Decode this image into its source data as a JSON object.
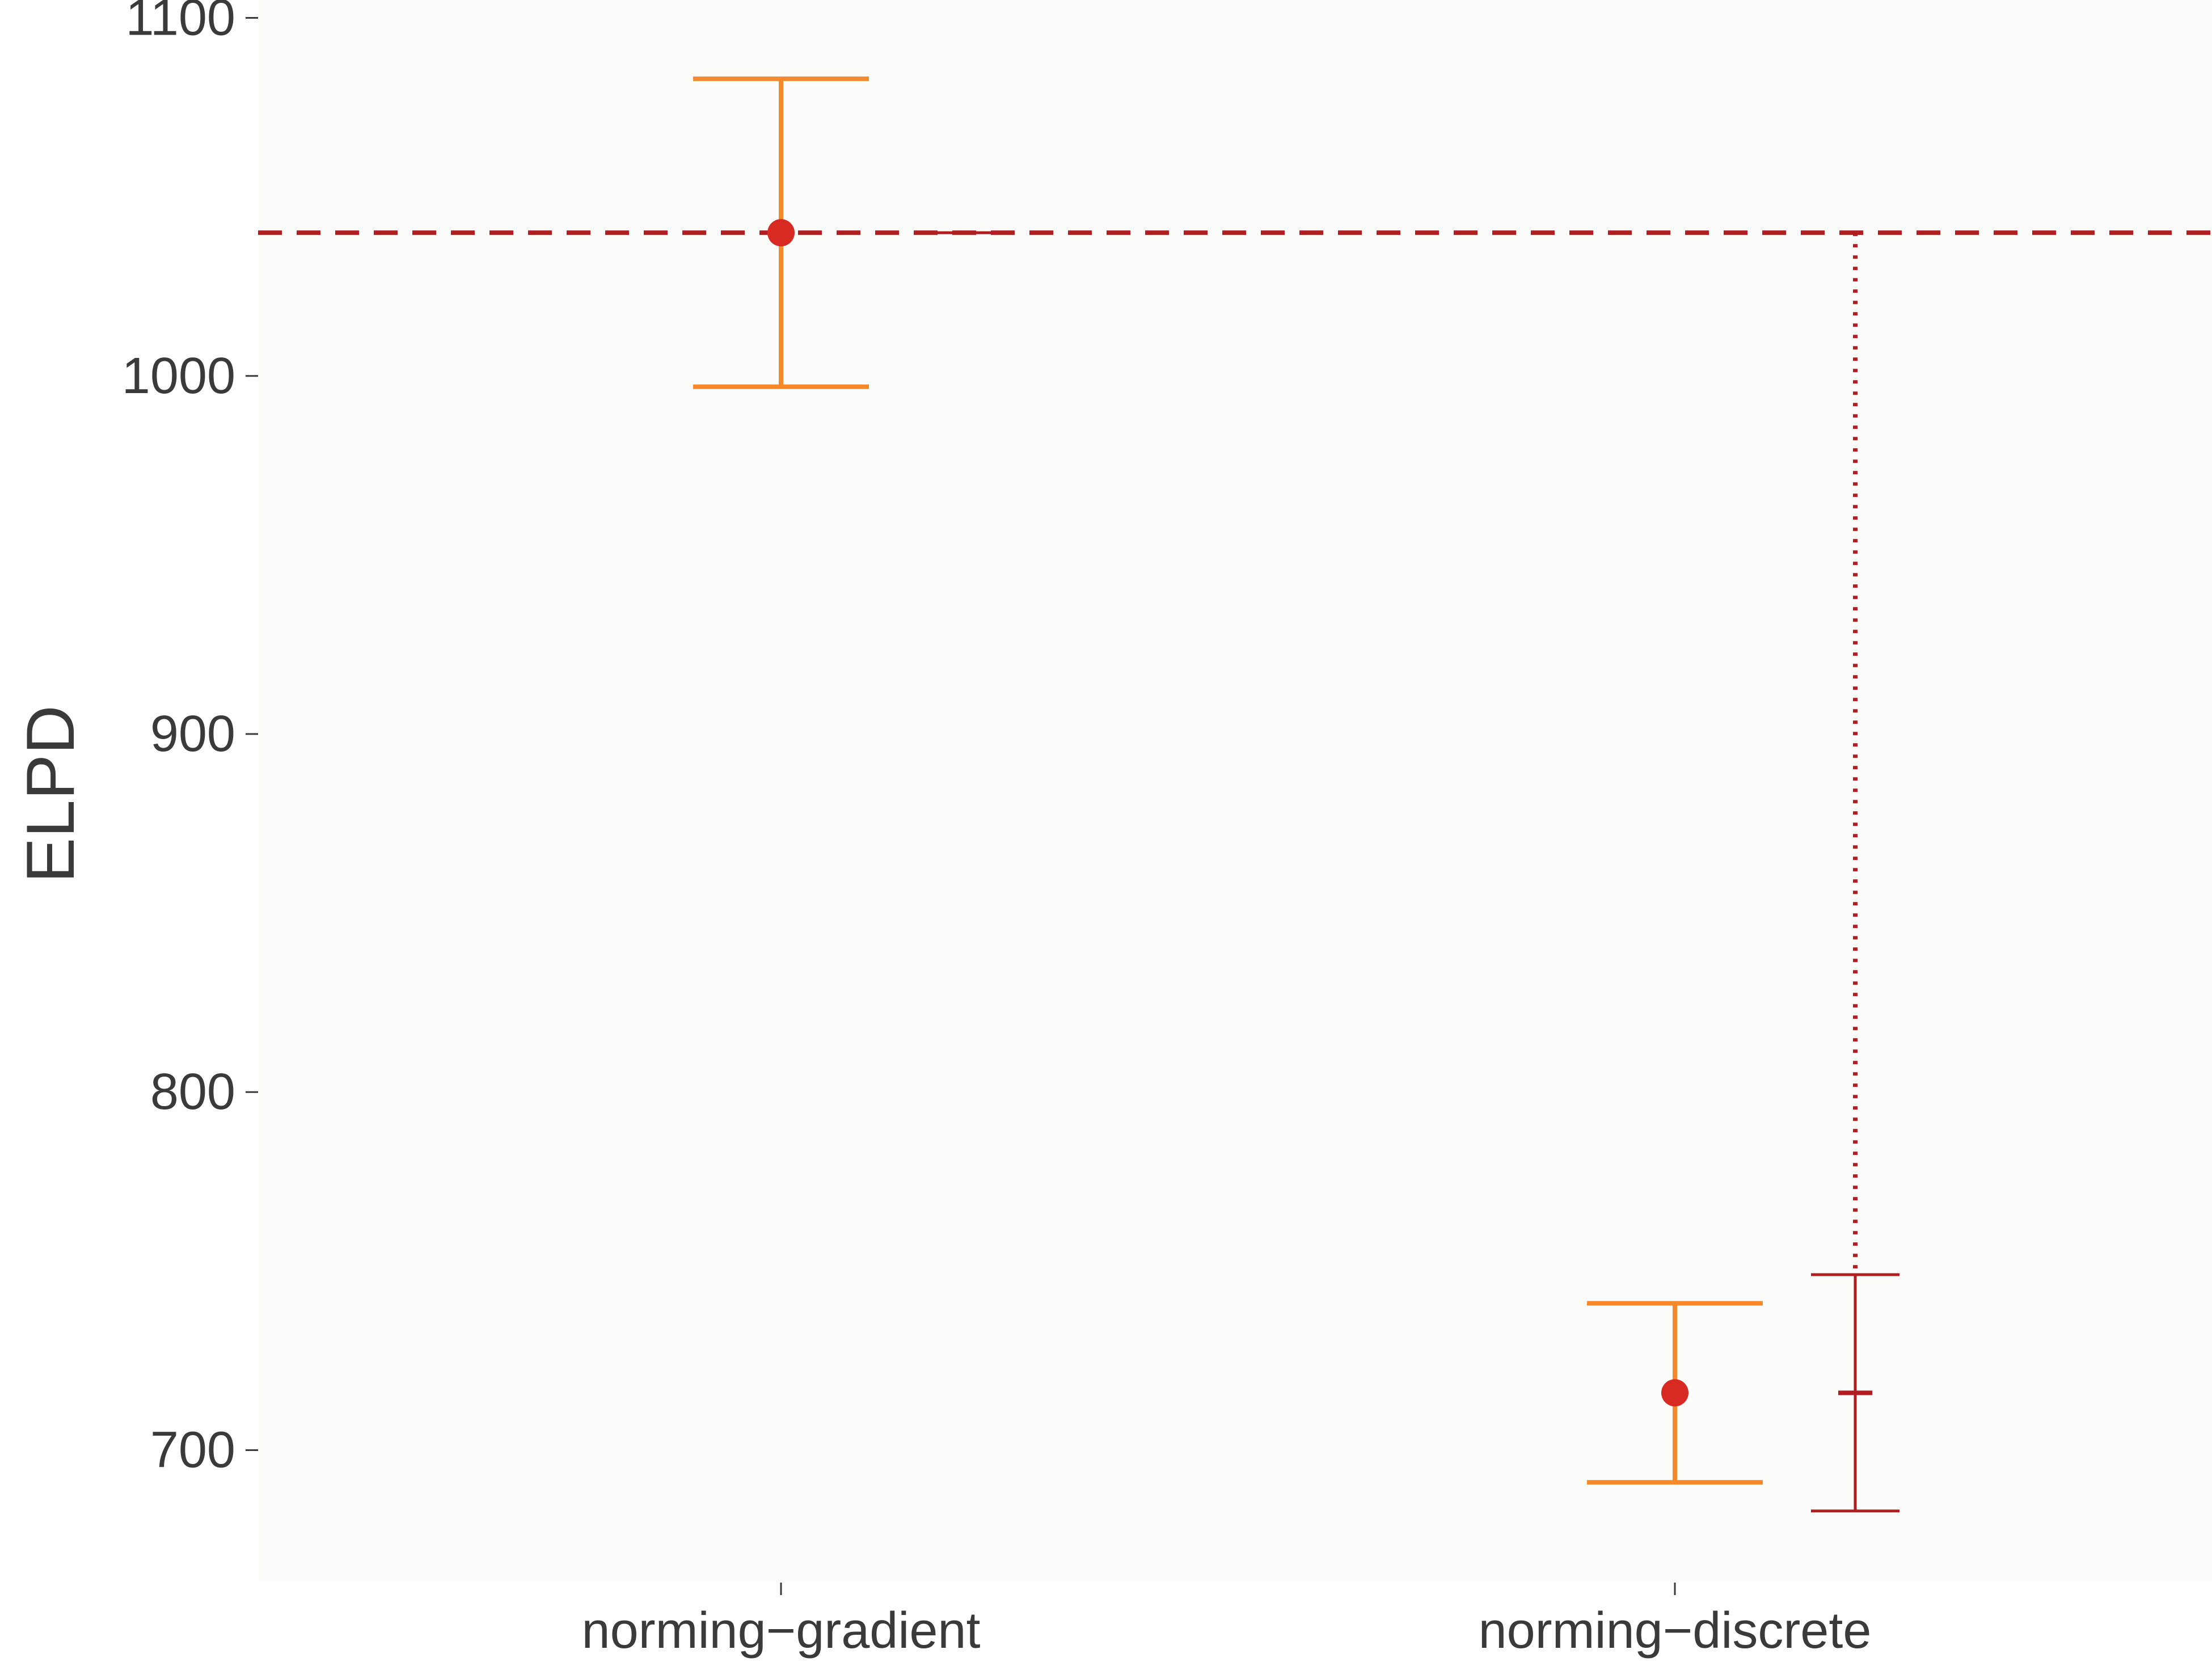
{
  "chart_data": {
    "type": "errorbar",
    "title": "",
    "xlabel": "",
    "ylabel": "ELPD",
    "categories": [
      "norming−gradient",
      "norming−discrete"
    ],
    "ylim": [
      663,
      1105
    ],
    "yticks": [
      700,
      800,
      900,
      1000,
      1100
    ],
    "grid": false,
    "series": [
      {
        "role": "elpd",
        "points": [
          {
            "category": "norming−gradient",
            "value": 1040,
            "lower": 997,
            "upper": 1083
          },
          {
            "category": "norming−discrete",
            "value": 716,
            "lower": 691,
            "upper": 741
          }
        ]
      },
      {
        "role": "elpd-difference",
        "points": [
          {
            "category": "norming−gradient",
            "value": 1040,
            "lower": 1040,
            "upper": 1040
          },
          {
            "category": "norming−discrete",
            "value": 716,
            "lower": 683,
            "upper": 749
          }
        ]
      }
    ],
    "reference_line": {
      "value": 1040,
      "style": "dashed"
    },
    "colors": {
      "panel_background": "#fcfcfa",
      "elpd_errorbar": "#f48a2c",
      "elpd_point": "#d62a22",
      "difference": "#b01e22",
      "reference_line": "#b01e22",
      "text": "#3a3a3a"
    }
  }
}
